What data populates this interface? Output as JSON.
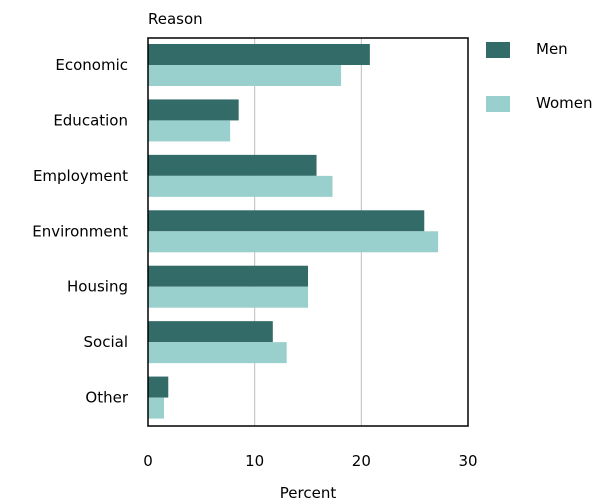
{
  "chart_data": {
    "type": "bar",
    "orientation": "horizontal",
    "title": "",
    "y_axis_title": "Reason",
    "xlabel": "Percent",
    "categories": [
      "Economic",
      "Education",
      "Employment",
      "Environment",
      "Housing",
      "Social",
      "Other"
    ],
    "series": [
      {
        "name": "Men",
        "color": "#336b69",
        "values": [
          20.8,
          8.5,
          15.8,
          25.9,
          15.0,
          11.7,
          1.9
        ]
      },
      {
        "name": "Women",
        "color": "#99cfcc",
        "values": [
          18.1,
          7.7,
          17.3,
          27.2,
          15.0,
          13.0,
          1.5
        ]
      }
    ],
    "xlim": [
      0,
      30
    ],
    "xticks": [
      0,
      10,
      20,
      30
    ],
    "grid": "vertical",
    "legend_position": "right"
  }
}
